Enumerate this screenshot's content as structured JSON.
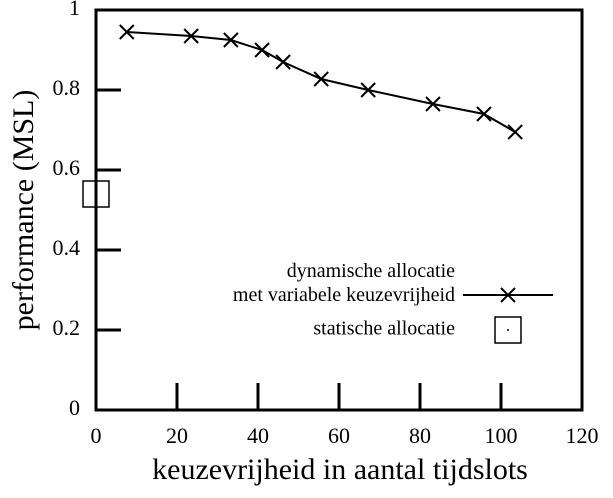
{
  "chart_data": {
    "type": "line",
    "xlabel": "keuzevrijheid in aantal tijdslots",
    "ylabel": "performance (MSL)",
    "xlim": [
      0,
      120
    ],
    "xticks": [
      0,
      20,
      40,
      60,
      80,
      100,
      120
    ],
    "ylim": [
      0,
      1
    ],
    "yticks": [
      0,
      0.2,
      0.4,
      0.6,
      0.8,
      1
    ],
    "series": [
      {
        "name": "dynamische allocatie\nmet variabele keuzevrijheid",
        "type": "line",
        "marker": "x",
        "color": "#000000",
        "x": [
          7.6,
          23.5,
          33.3,
          41,
          46.2,
          55.6,
          67.2,
          83.2,
          95.8,
          103.5
        ],
        "values": [
          0.945,
          0.935,
          0.925,
          0.9,
          0.87,
          0.8275,
          0.8,
          0.765,
          0.74,
          0.695
        ]
      },
      {
        "name": "statische allocatie",
        "type": "scatter",
        "marker": "square",
        "color": "#000000",
        "x": [
          0
        ],
        "values": [
          0.54
        ]
      }
    ]
  }
}
